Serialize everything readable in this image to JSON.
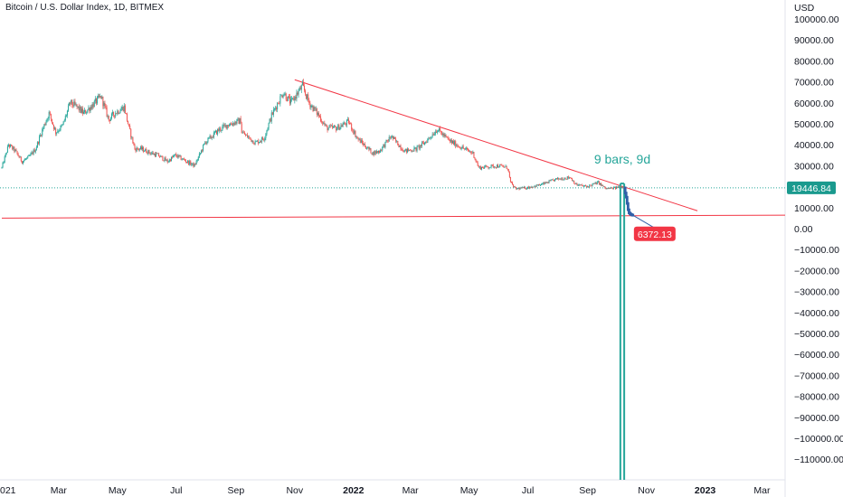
{
  "title": "Bitcoin / U.S. Dollar Index, 1D, BITMEX",
  "colors": {
    "background": "#ffffff",
    "up_candle": "#26a69a",
    "down_candle": "#ef5350",
    "projection": "#2f5fa8",
    "trendline": "#f23645",
    "vertical_lines": "#26a69a",
    "current_price_badge": "#1a9a8e",
    "target_badge": "#f23645",
    "axis_text": "#131722"
  },
  "chart_data": {
    "type": "candlestick",
    "currency_label": "USD",
    "y_axis": {
      "min": -120000,
      "max": 100000,
      "ticks": [
        100000,
        90000,
        80000,
        70000,
        60000,
        50000,
        40000,
        30000,
        20000,
        10000,
        0,
        -10000,
        -20000,
        -30000,
        -40000,
        -50000,
        -60000,
        -70000,
        -80000,
        -90000,
        -100000,
        -110000
      ],
      "tick_labels": [
        "100000.00",
        "90000.00",
        "80000.00",
        "70000.00",
        "60000.00",
        "50000.00",
        "40000.00",
        "30000.00",
        "20000.00",
        "10000.00",
        "0.00",
        "−10000.00",
        "−20000.00",
        "−30000.00",
        "−40000.00",
        "−50000.00",
        "−60000.00",
        "−70000.00",
        "−80000.00",
        "−90000.00",
        "−100000.00",
        "−110000.00"
      ]
    },
    "x_axis": {
      "range": [
        "2021-01-01",
        "2023-03-25"
      ],
      "ticks": [
        {
          "label": "021",
          "date": "2021-01-01"
        },
        {
          "label": "Mar",
          "date": "2021-03-01"
        },
        {
          "label": "May",
          "date": "2021-05-01"
        },
        {
          "label": "Jul",
          "date": "2021-07-01"
        },
        {
          "label": "Sep",
          "date": "2021-09-01"
        },
        {
          "label": "Nov",
          "date": "2021-11-01"
        },
        {
          "label": "2022",
          "date": "2022-01-01",
          "bold": true
        },
        {
          "label": "Mar",
          "date": "2022-03-01"
        },
        {
          "label": "May",
          "date": "2022-05-01"
        },
        {
          "label": "Jul",
          "date": "2022-07-01"
        },
        {
          "label": "Sep",
          "date": "2022-09-01"
        },
        {
          "label": "Nov",
          "date": "2022-11-01"
        },
        {
          "label": "2023",
          "date": "2023-01-01",
          "bold": true
        },
        {
          "label": "Mar",
          "date": "2023-03-01"
        }
      ]
    },
    "price_path": [
      [
        "2021-01-01",
        29000
      ],
      [
        "2021-01-08",
        40000
      ],
      [
        "2021-01-15",
        37000
      ],
      [
        "2021-01-22",
        32000
      ],
      [
        "2021-01-29",
        34000
      ],
      [
        "2021-02-05",
        38000
      ],
      [
        "2021-02-12",
        47000
      ],
      [
        "2021-02-19",
        55000
      ],
      [
        "2021-02-26",
        46000
      ],
      [
        "2021-03-05",
        49000
      ],
      [
        "2021-03-13",
        60000
      ],
      [
        "2021-03-20",
        58000
      ],
      [
        "2021-03-27",
        55000
      ],
      [
        "2021-04-03",
        58000
      ],
      [
        "2021-04-14",
        63000
      ],
      [
        "2021-04-22",
        52000
      ],
      [
        "2021-04-28",
        55000
      ],
      [
        "2021-05-08",
        58000
      ],
      [
        "2021-05-13",
        48000
      ],
      [
        "2021-05-19",
        38000
      ],
      [
        "2021-05-26",
        38000
      ],
      [
        "2021-06-05",
        36000
      ],
      [
        "2021-06-12",
        35000
      ],
      [
        "2021-06-22",
        32000
      ],
      [
        "2021-06-30",
        35000
      ],
      [
        "2021-07-08",
        33000
      ],
      [
        "2021-07-20",
        30000
      ],
      [
        "2021-07-31",
        41000
      ],
      [
        "2021-08-14",
        47000
      ],
      [
        "2021-08-23",
        49500
      ],
      [
        "2021-09-06",
        51500
      ],
      [
        "2021-09-07",
        46000
      ],
      [
        "2021-09-21",
        41000
      ],
      [
        "2021-09-30",
        43000
      ],
      [
        "2021-10-08",
        54000
      ],
      [
        "2021-10-20",
        65000
      ],
      [
        "2021-10-28",
        60000
      ],
      [
        "2021-11-09",
        68000
      ],
      [
        "2021-11-16",
        60000
      ],
      [
        "2021-11-26",
        54000
      ],
      [
        "2021-12-04",
        48000
      ],
      [
        "2021-12-15",
        48000
      ],
      [
        "2021-12-27",
        51000
      ],
      [
        "2022-01-05",
        43000
      ],
      [
        "2022-01-21",
        36000
      ],
      [
        "2022-01-28",
        37000
      ],
      [
        "2022-02-09",
        44000
      ],
      [
        "2022-02-23",
        37000
      ],
      [
        "2022-03-07",
        38000
      ],
      [
        "2022-03-16",
        41000
      ],
      [
        "2022-03-29",
        47500
      ],
      [
        "2022-04-10",
        42000
      ],
      [
        "2022-04-26",
        38000
      ],
      [
        "2022-05-05",
        36000
      ],
      [
        "2022-05-11",
        29000
      ],
      [
        "2022-05-20",
        29500
      ],
      [
        "2022-06-01",
        30000
      ],
      [
        "2022-06-10",
        29000
      ],
      [
        "2022-06-13",
        22000
      ],
      [
        "2022-06-18",
        19000
      ],
      [
        "2022-06-30",
        19500
      ],
      [
        "2022-07-15",
        21000
      ],
      [
        "2022-07-30",
        23500
      ],
      [
        "2022-08-14",
        24500
      ],
      [
        "2022-08-20",
        21000
      ],
      [
        "2022-08-31",
        20000
      ],
      [
        "2022-09-12",
        22000
      ],
      [
        "2022-09-20",
        19000
      ],
      [
        "2022-09-30",
        19400
      ],
      [
        "2022-10-05",
        20200
      ],
      [
        "2022-10-09",
        19446.84
      ]
    ],
    "projection_path": [
      [
        "2022-10-09",
        19446.84
      ],
      [
        "2022-10-10",
        17000
      ],
      [
        "2022-10-11",
        15000
      ],
      [
        "2022-10-12",
        12000
      ],
      [
        "2022-10-13",
        9000
      ],
      [
        "2022-10-14",
        7500
      ],
      [
        "2022-10-15",
        7000
      ],
      [
        "2022-10-16",
        6700
      ],
      [
        "2022-10-17",
        6500
      ],
      [
        "2022-10-18",
        6372.13
      ]
    ],
    "trendlines": [
      {
        "from": [
          "2021-11-01",
          71000
        ],
        "to": [
          "2022-12-24",
          8500
        ]
      },
      {
        "from": [
          "2021-01-01",
          5000
        ],
        "to": [
          "2023-03-25",
          6400
        ]
      }
    ],
    "target_line": {
      "from": [
        "2022-10-18",
        6372.13
      ],
      "to": [
        "2022-11-20",
        -2500
      ]
    },
    "reference_dotted_line": 19446.84,
    "vertical_lines": [
      "2022-10-05",
      "2022-10-09"
    ],
    "annotation": {
      "text": "9 bars, 9d",
      "date": "2022-10-07",
      "value": 31000
    },
    "current_price_label": "19446.84",
    "target_price_label": "6372.13",
    "target_price_value": 6372.13
  }
}
